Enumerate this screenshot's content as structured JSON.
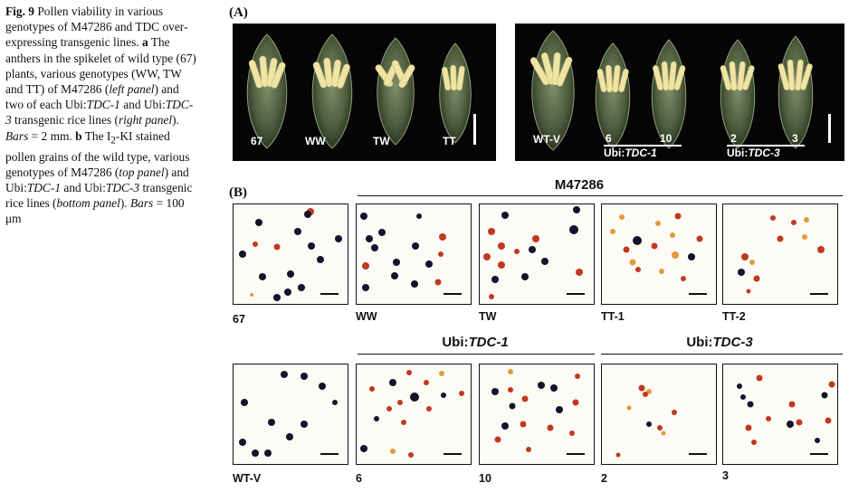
{
  "caption": {
    "fig_label": "Fig. 9",
    "text_1": " Pollen viability in various genotypes of M47286 and TDC over-expressing transgenic lines. ",
    "a_label": "a",
    "text_2": " The anthers in the spikelet of wild type (67) plants, various genotypes (WW, TW and TT) of M47286 (",
    "left_panel": "left panel",
    "text_3": ") and two of each Ubi:",
    "tdc1": "TDC-1",
    "text_4": " and Ubi:",
    "tdc3": "TDC-3",
    "text_5": " transgenic rice lines (",
    "right_panel": "right panel",
    "text_6": "). ",
    "bars_1": "Bars",
    "text_7": " = 2 mm. ",
    "b_label": "b",
    "text_8": " The I",
    "sub2": "2",
    "text_9": "-KI stained pollen grains of the wild type, various genotypes of M47286 (",
    "top_panel": "top panel",
    "text_10": ") and Ubi:",
    "tdc1b": "TDC-1",
    "text_11": " and Ubi:",
    "tdc3b": "TDC-3",
    "text_12": " transgenic rice lines (",
    "bottom_panel": "bottom panel",
    "text_13": "). ",
    "bars_2": "Bars",
    "text_14": " = 100 μm"
  },
  "panel_a": {
    "label": "(A)",
    "left_photo_labels": [
      "67",
      "WW",
      "TW",
      "TT"
    ],
    "right_photo_labels": [
      "WT-V",
      "6",
      "10",
      "2",
      "3"
    ],
    "ubi_prefix": "Ubi:",
    "tdc1": "TDC-1",
    "tdc3": "TDC-3"
  },
  "panel_b": {
    "label": "(B)",
    "top_group_title": "M47286",
    "top_labels": [
      "67",
      "WW",
      "TW",
      "TT-1",
      "TT-2"
    ],
    "bottom_group_ubi": "Ubi:",
    "bottom_group_tdc1": "TDC-1",
    "bottom_group_tdc3": "TDC-3",
    "bottom_labels": [
      "WT-V",
      "6",
      "10",
      "2",
      "3"
    ]
  },
  "colors": {
    "stained_grain": "#15122a",
    "unstained_grain": "#c0391f",
    "pale_grain": "#e39a3a",
    "anther": "#efe4a4",
    "photo_bg": "#050505"
  }
}
